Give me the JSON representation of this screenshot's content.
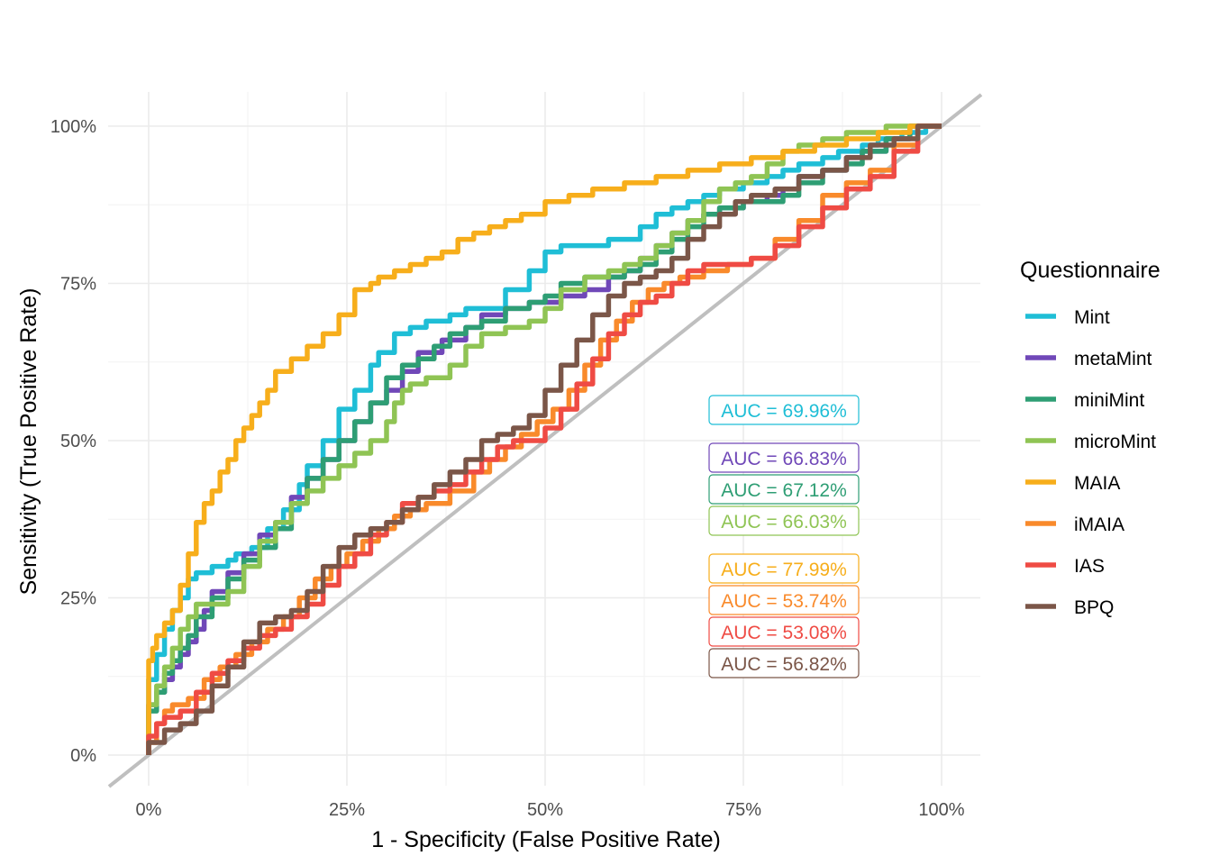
{
  "chart_data": {
    "type": "line",
    "xlabel": "1 - Specificity (False Positive Rate)",
    "ylabel": "Sensitivity (True Positive Rate)",
    "xlim": [
      0,
      1
    ],
    "ylim": [
      0,
      1
    ],
    "x_ticks": [
      0,
      0.25,
      0.5,
      0.75,
      1.0
    ],
    "x_tick_labels": [
      "0%",
      "25%",
      "50%",
      "75%",
      "100%"
    ],
    "y_ticks": [
      0,
      0.25,
      0.5,
      0.75,
      1.0
    ],
    "y_tick_labels": [
      "0%",
      "25%",
      "50%",
      "75%",
      "100%"
    ],
    "grid": true,
    "diagonal_reference_line": true,
    "legend_title": "Questionnaire",
    "legend_position": "right",
    "series": [
      {
        "name": "Mint",
        "color": "#1FBED6",
        "auc_label": "AUC = 69.96%",
        "x": [
          0,
          0,
          0.01,
          0.01,
          0.02,
          0.03,
          0.04,
          0.05,
          0.06,
          0.07,
          0.08,
          0.09,
          0.1,
          0.11,
          0.13,
          0.15,
          0.17,
          0.19,
          0.2,
          0.22,
          0.24,
          0.26,
          0.28,
          0.29,
          0.31,
          0.33,
          0.35,
          0.38,
          0.4,
          0.42,
          0.45,
          0.48,
          0.5,
          0.52,
          0.55,
          0.58,
          0.6,
          0.62,
          0.64,
          0.66,
          0.68,
          0.7,
          0.72,
          0.75,
          0.78,
          0.8,
          0.82,
          0.85,
          0.87,
          0.9,
          0.92,
          0.95,
          0.98,
          1.0
        ],
        "y": [
          0,
          0.08,
          0.12,
          0.15,
          0.16,
          0.2,
          0.23,
          0.25,
          0.28,
          0.29,
          0.29,
          0.3,
          0.3,
          0.31,
          0.32,
          0.33,
          0.36,
          0.39,
          0.43,
          0.46,
          0.5,
          0.55,
          0.58,
          0.62,
          0.64,
          0.67,
          0.68,
          0.69,
          0.7,
          0.71,
          0.71,
          0.74,
          0.77,
          0.8,
          0.81,
          0.81,
          0.82,
          0.82,
          0.84,
          0.86,
          0.87,
          0.88,
          0.89,
          0.9,
          0.91,
          0.92,
          0.93,
          0.94,
          0.95,
          0.96,
          0.97,
          0.98,
          0.99,
          1.0
        ]
      },
      {
        "name": "metaMint",
        "color": "#7048B8",
        "auc_label": "AUC = 66.83%",
        "x": [
          0,
          0,
          0.01,
          0.02,
          0.03,
          0.04,
          0.05,
          0.06,
          0.07,
          0.08,
          0.1,
          0.12,
          0.14,
          0.16,
          0.18,
          0.2,
          0.22,
          0.24,
          0.26,
          0.28,
          0.3,
          0.32,
          0.34,
          0.37,
          0.4,
          0.42,
          0.45,
          0.48,
          0.5,
          0.52,
          0.55,
          0.58,
          0.6,
          0.62,
          0.64,
          0.66,
          0.68,
          0.7,
          0.72,
          0.75,
          0.78,
          0.8,
          0.82,
          0.85,
          0.88,
          0.9,
          0.93,
          0.96,
          1.0
        ],
        "y": [
          0,
          0.05,
          0.08,
          0.1,
          0.12,
          0.14,
          0.16,
          0.18,
          0.2,
          0.23,
          0.26,
          0.29,
          0.32,
          0.35,
          0.37,
          0.41,
          0.44,
          0.47,
          0.5,
          0.53,
          0.56,
          0.58,
          0.61,
          0.64,
          0.66,
          0.68,
          0.7,
          0.71,
          0.72,
          0.72,
          0.73,
          0.74,
          0.76,
          0.77,
          0.79,
          0.81,
          0.83,
          0.85,
          0.86,
          0.87,
          0.88,
          0.89,
          0.9,
          0.92,
          0.93,
          0.95,
          0.96,
          0.98,
          1.0
        ]
      },
      {
        "name": "miniMint",
        "color": "#2E9E74",
        "auc_label": "AUC = 67.12%",
        "x": [
          0,
          0,
          0.01,
          0.02,
          0.03,
          0.04,
          0.05,
          0.06,
          0.08,
          0.1,
          0.12,
          0.14,
          0.16,
          0.18,
          0.2,
          0.22,
          0.24,
          0.26,
          0.28,
          0.3,
          0.32,
          0.34,
          0.36,
          0.38,
          0.4,
          0.42,
          0.45,
          0.48,
          0.5,
          0.52,
          0.55,
          0.58,
          0.6,
          0.62,
          0.64,
          0.66,
          0.68,
          0.7,
          0.72,
          0.75,
          0.78,
          0.8,
          0.82,
          0.85,
          0.88,
          0.9,
          0.93,
          0.96,
          1.0
        ],
        "y": [
          0,
          0.04,
          0.07,
          0.1,
          0.13,
          0.15,
          0.17,
          0.19,
          0.22,
          0.25,
          0.28,
          0.31,
          0.33,
          0.36,
          0.4,
          0.44,
          0.47,
          0.5,
          0.53,
          0.56,
          0.6,
          0.62,
          0.63,
          0.65,
          0.67,
          0.68,
          0.69,
          0.71,
          0.72,
          0.73,
          0.75,
          0.76,
          0.76,
          0.77,
          0.78,
          0.8,
          0.82,
          0.84,
          0.86,
          0.87,
          0.88,
          0.88,
          0.89,
          0.91,
          0.93,
          0.94,
          0.96,
          0.98,
          1.0
        ]
      },
      {
        "name": "microMint",
        "color": "#8FC454",
        "auc_label": "AUC = 66.03%",
        "x": [
          0,
          0,
          0.01,
          0.02,
          0.03,
          0.04,
          0.05,
          0.06,
          0.07,
          0.08,
          0.1,
          0.12,
          0.14,
          0.16,
          0.18,
          0.2,
          0.22,
          0.24,
          0.26,
          0.28,
          0.3,
          0.31,
          0.32,
          0.33,
          0.35,
          0.38,
          0.4,
          0.42,
          0.45,
          0.48,
          0.5,
          0.52,
          0.55,
          0.58,
          0.6,
          0.62,
          0.64,
          0.66,
          0.68,
          0.7,
          0.72,
          0.74,
          0.76,
          0.78,
          0.8,
          0.82,
          0.85,
          0.88,
          0.9,
          0.93,
          0.96,
          1.0
        ],
        "y": [
          0,
          0.04,
          0.08,
          0.11,
          0.14,
          0.17,
          0.2,
          0.22,
          0.24,
          0.24,
          0.24,
          0.26,
          0.3,
          0.34,
          0.37,
          0.4,
          0.42,
          0.44,
          0.46,
          0.48,
          0.5,
          0.53,
          0.56,
          0.58,
          0.59,
          0.6,
          0.62,
          0.65,
          0.67,
          0.68,
          0.69,
          0.71,
          0.74,
          0.76,
          0.77,
          0.78,
          0.79,
          0.81,
          0.83,
          0.85,
          0.88,
          0.9,
          0.91,
          0.92,
          0.94,
          0.96,
          0.97,
          0.98,
          0.99,
          0.99,
          1.0,
          1.0
        ]
      },
      {
        "name": "MAIA",
        "color": "#F7AE1B",
        "auc_label": "AUC = 77.99%",
        "x": [
          0,
          0,
          0.005,
          0.01,
          0.02,
          0.03,
          0.04,
          0.05,
          0.06,
          0.07,
          0.08,
          0.09,
          0.1,
          0.11,
          0.12,
          0.13,
          0.14,
          0.15,
          0.16,
          0.18,
          0.2,
          0.22,
          0.24,
          0.26,
          0.28,
          0.29,
          0.31,
          0.33,
          0.35,
          0.37,
          0.39,
          0.41,
          0.43,
          0.45,
          0.47,
          0.5,
          0.53,
          0.56,
          0.6,
          0.64,
          0.68,
          0.72,
          0.76,
          0.8,
          0.84,
          0.88,
          0.92,
          0.96,
          1.0
        ],
        "y": [
          0,
          0.12,
          0.15,
          0.17,
          0.19,
          0.21,
          0.23,
          0.27,
          0.32,
          0.37,
          0.4,
          0.42,
          0.45,
          0.47,
          0.5,
          0.52,
          0.54,
          0.56,
          0.58,
          0.61,
          0.63,
          0.65,
          0.67,
          0.7,
          0.74,
          0.75,
          0.76,
          0.77,
          0.78,
          0.79,
          0.8,
          0.82,
          0.83,
          0.84,
          0.85,
          0.86,
          0.88,
          0.89,
          0.9,
          0.91,
          0.92,
          0.93,
          0.94,
          0.95,
          0.96,
          0.97,
          0.98,
          0.99,
          1.0
        ]
      },
      {
        "name": "iMAIA",
        "color": "#F98A2B",
        "auc_label": "AUC = 53.74%",
        "x": [
          0,
          0.01,
          0.02,
          0.03,
          0.05,
          0.07,
          0.09,
          0.11,
          0.13,
          0.15,
          0.17,
          0.19,
          0.21,
          0.23,
          0.25,
          0.27,
          0.29,
          0.31,
          0.33,
          0.35,
          0.38,
          0.41,
          0.43,
          0.45,
          0.47,
          0.49,
          0.51,
          0.53,
          0.55,
          0.57,
          0.59,
          0.61,
          0.63,
          0.65,
          0.67,
          0.7,
          0.73,
          0.76,
          0.79,
          0.82,
          0.85,
          0.88,
          0.91,
          0.94,
          0.97,
          1.0
        ],
        "y": [
          0,
          0.02,
          0.05,
          0.07,
          0.08,
          0.09,
          0.12,
          0.14,
          0.16,
          0.18,
          0.2,
          0.22,
          0.25,
          0.28,
          0.3,
          0.32,
          0.34,
          0.36,
          0.38,
          0.39,
          0.4,
          0.42,
          0.45,
          0.47,
          0.49,
          0.51,
          0.53,
          0.55,
          0.58,
          0.62,
          0.66,
          0.69,
          0.72,
          0.74,
          0.75,
          0.76,
          0.77,
          0.78,
          0.79,
          0.82,
          0.85,
          0.89,
          0.91,
          0.93,
          0.97,
          1.0
        ]
      },
      {
        "name": "IAS",
        "color": "#EF4B44",
        "auc_label": "AUC = 53.08%",
        "x": [
          0,
          0.01,
          0.02,
          0.04,
          0.06,
          0.08,
          0.1,
          0.12,
          0.14,
          0.16,
          0.18,
          0.2,
          0.22,
          0.24,
          0.26,
          0.28,
          0.3,
          0.32,
          0.34,
          0.36,
          0.38,
          0.4,
          0.42,
          0.44,
          0.46,
          0.48,
          0.5,
          0.52,
          0.54,
          0.56,
          0.58,
          0.6,
          0.62,
          0.64,
          0.66,
          0.68,
          0.7,
          0.73,
          0.76,
          0.79,
          0.82,
          0.85,
          0.88,
          0.91,
          0.94,
          0.97,
          1.0
        ],
        "y": [
          0,
          0.03,
          0.05,
          0.06,
          0.07,
          0.1,
          0.13,
          0.15,
          0.17,
          0.19,
          0.2,
          0.22,
          0.24,
          0.27,
          0.3,
          0.32,
          0.35,
          0.37,
          0.4,
          0.41,
          0.42,
          0.43,
          0.45,
          0.47,
          0.49,
          0.5,
          0.5,
          0.52,
          0.55,
          0.59,
          0.63,
          0.67,
          0.7,
          0.72,
          0.73,
          0.75,
          0.77,
          0.78,
          0.78,
          0.79,
          0.81,
          0.84,
          0.87,
          0.9,
          0.92,
          0.96,
          1.0
        ]
      },
      {
        "name": "BPQ",
        "color": "#7B5648",
        "auc_label": "AUC = 56.82%",
        "x": [
          0,
          0.02,
          0.04,
          0.06,
          0.08,
          0.1,
          0.12,
          0.14,
          0.16,
          0.18,
          0.2,
          0.22,
          0.24,
          0.26,
          0.28,
          0.3,
          0.32,
          0.34,
          0.36,
          0.38,
          0.4,
          0.42,
          0.44,
          0.46,
          0.48,
          0.5,
          0.52,
          0.54,
          0.56,
          0.58,
          0.6,
          0.62,
          0.64,
          0.66,
          0.68,
          0.7,
          0.72,
          0.74,
          0.76,
          0.79,
          0.82,
          0.85,
          0.88,
          0.91,
          0.94,
          0.97,
          1.0
        ],
        "y": [
          0,
          0.02,
          0.04,
          0.05,
          0.07,
          0.11,
          0.14,
          0.18,
          0.21,
          0.22,
          0.23,
          0.26,
          0.3,
          0.33,
          0.35,
          0.36,
          0.37,
          0.39,
          0.41,
          0.43,
          0.45,
          0.47,
          0.5,
          0.51,
          0.52,
          0.54,
          0.58,
          0.62,
          0.66,
          0.7,
          0.73,
          0.75,
          0.76,
          0.77,
          0.79,
          0.82,
          0.84,
          0.86,
          0.88,
          0.89,
          0.9,
          0.92,
          0.93,
          0.95,
          0.97,
          0.98,
          1.0
        ]
      }
    ]
  }
}
